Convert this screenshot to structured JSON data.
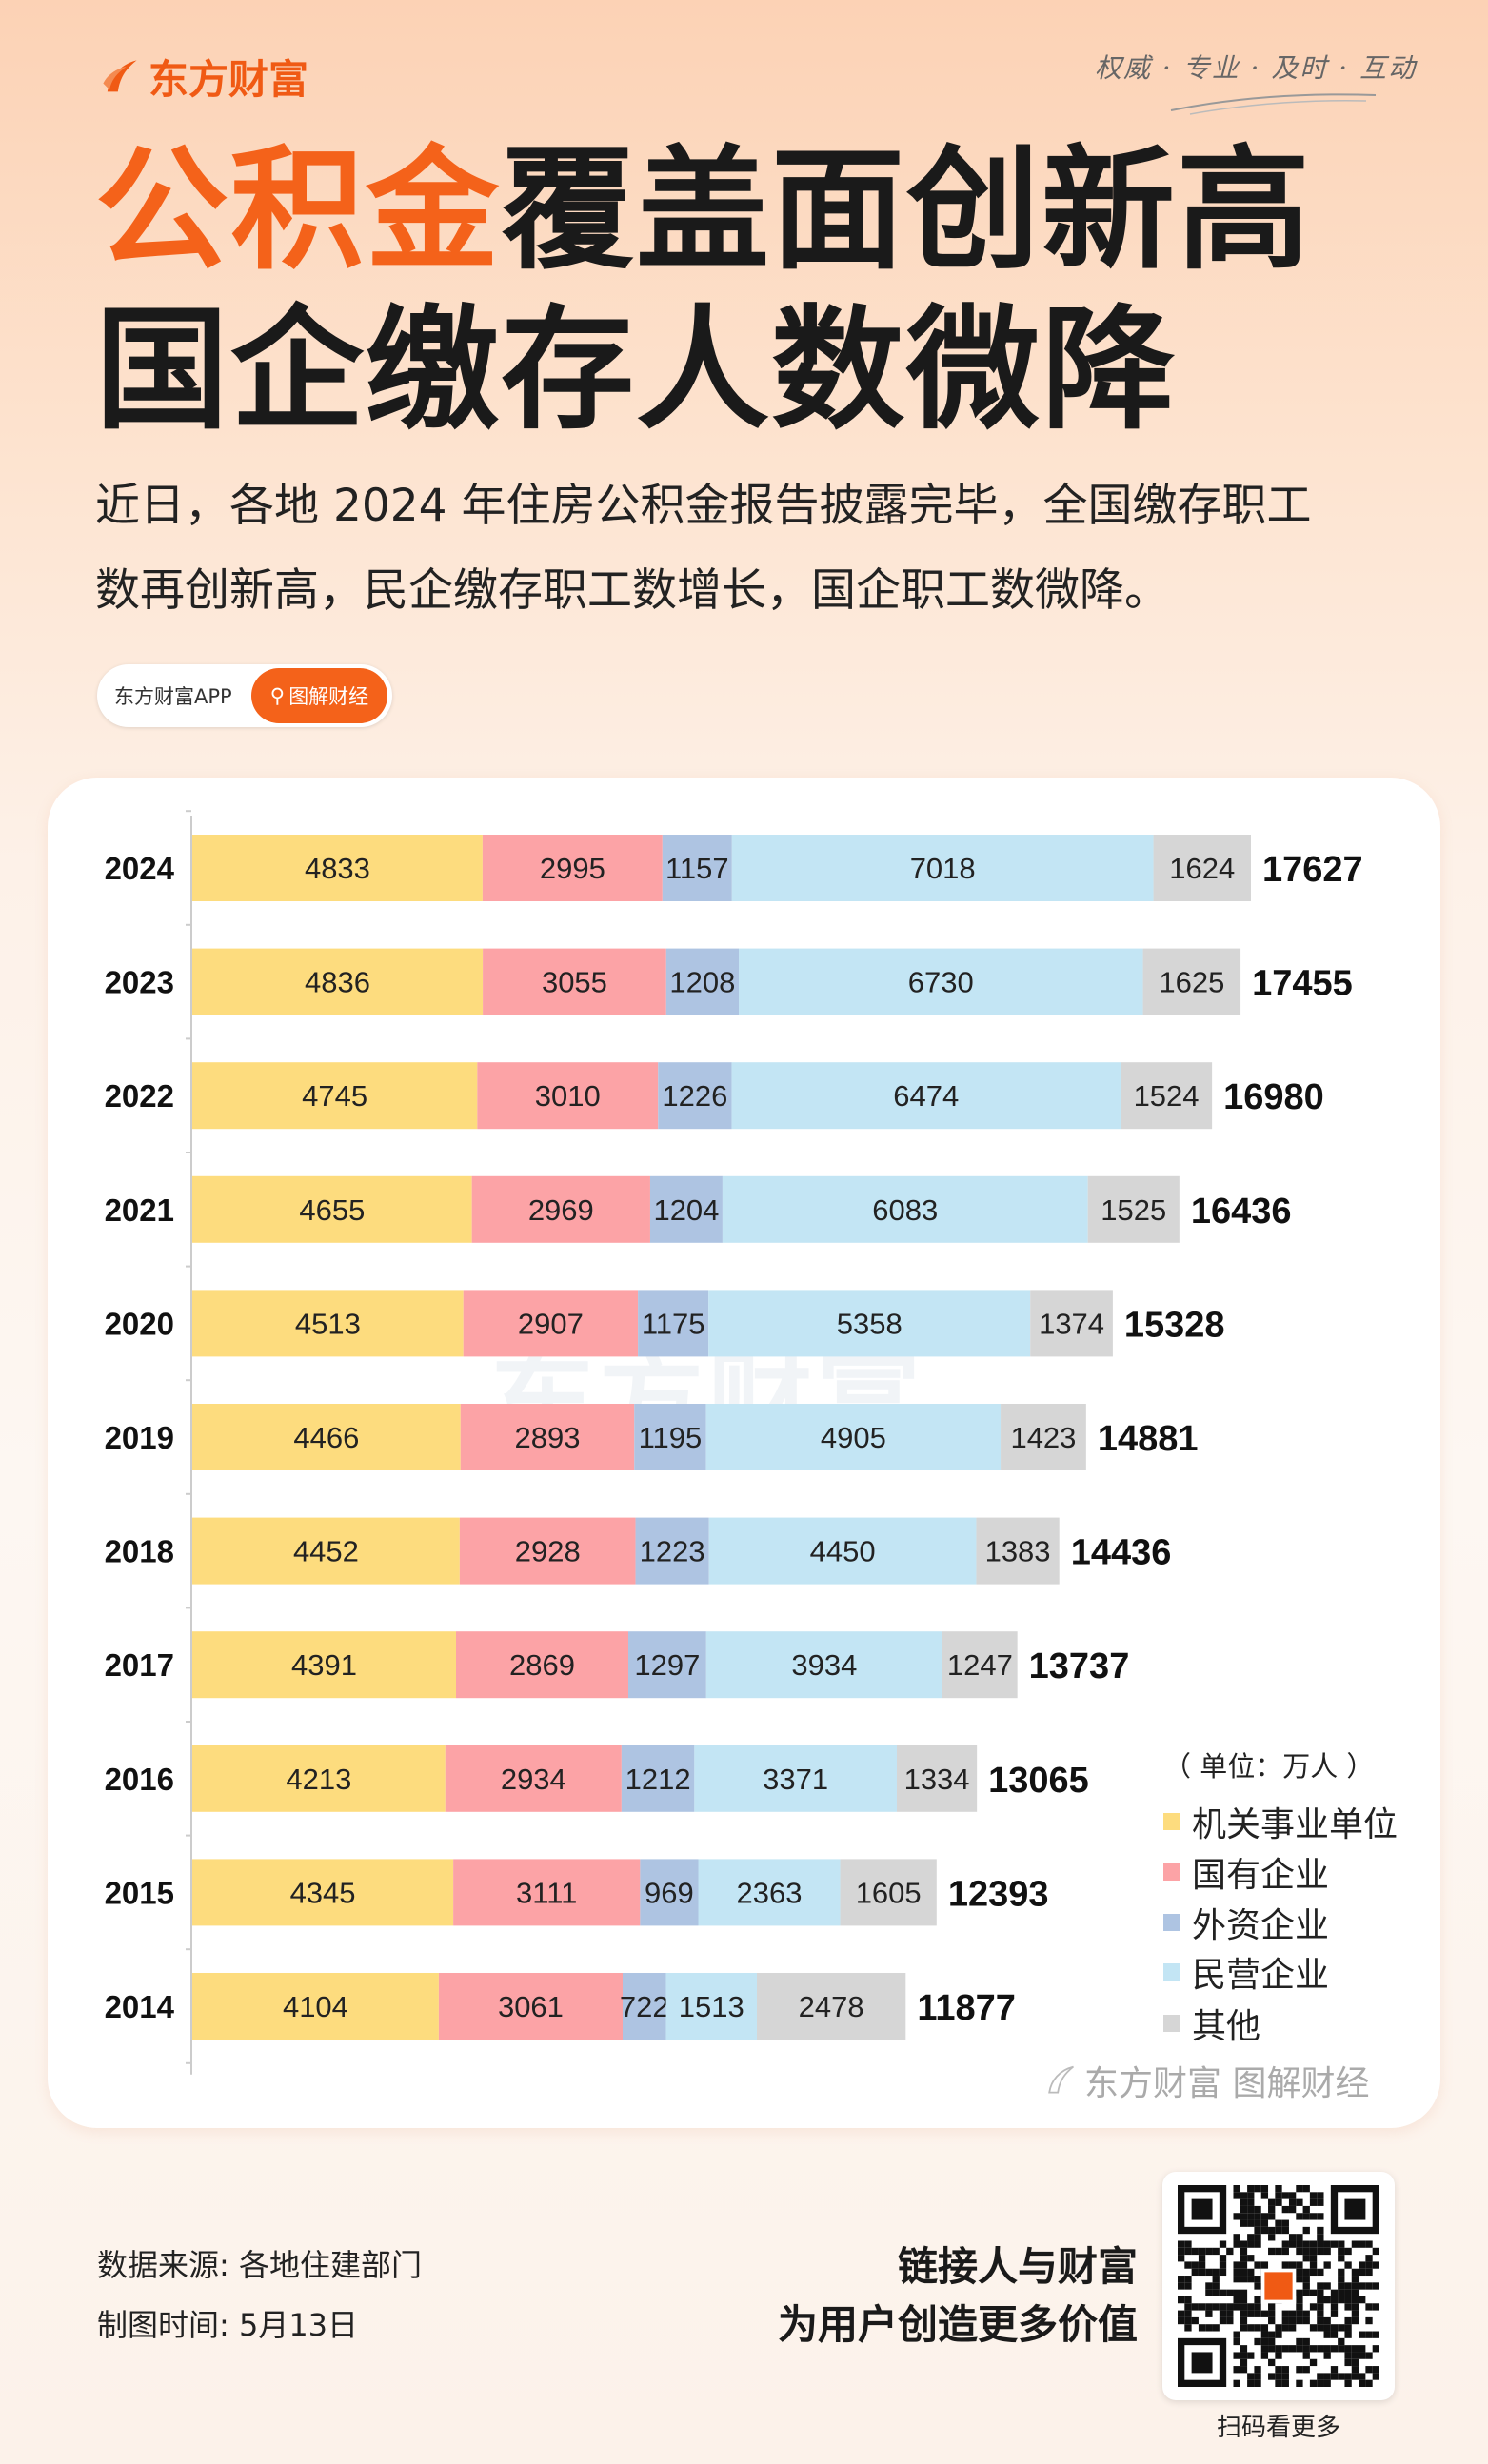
{
  "header": {
    "brand": "东方财富",
    "slogan": "权威 · 专业 · 及时 · 互动",
    "brand_color": "#f05a14"
  },
  "title": {
    "highlight": "公积金",
    "line1_rest": "覆盖面创新高",
    "line2": "国企缴存人数微降"
  },
  "subtitle": {
    "line1": "近日，各地 2024 年住房公积金报告披露完毕，全国缴存职工",
    "line2": "数再创新高，民企缴存职工数增长，国企职工数微降。"
  },
  "badge": {
    "app": "东方财富APP",
    "channel": "图解财经",
    "icon": "search-icon"
  },
  "chart_data": {
    "type": "stacked-bar-horizontal",
    "unit": "（ 单位：万人 ）",
    "categories": [
      "2024",
      "2023",
      "2022",
      "2021",
      "2020",
      "2019",
      "2018",
      "2017",
      "2016",
      "2015",
      "2014"
    ],
    "series": [
      {
        "name": "机关事业单位",
        "color": "#fddc7e",
        "values": [
          4833,
          4836,
          4745,
          4655,
          4513,
          4466,
          4452,
          4391,
          4213,
          4345,
          4104
        ]
      },
      {
        "name": "国有企业",
        "color": "#fca3a6",
        "values": [
          2995,
          3055,
          3010,
          2969,
          2907,
          2893,
          2928,
          2869,
          2934,
          3111,
          3061
        ]
      },
      {
        "name": "外资企业",
        "color": "#aec4e2",
        "values": [
          1157,
          1208,
          1226,
          1204,
          1175,
          1195,
          1223,
          1297,
          1212,
          969,
          722
        ]
      },
      {
        "name": "民营企业",
        "color": "#c3e5f4",
        "values": [
          7018,
          6730,
          6474,
          6083,
          5358,
          4905,
          4450,
          3934,
          3371,
          2363,
          1513
        ]
      },
      {
        "name": "其他",
        "color": "#d6d6d6",
        "values": [
          1624,
          1625,
          1524,
          1525,
          1374,
          1423,
          1383,
          1247,
          1334,
          1605,
          2478
        ]
      }
    ],
    "totals": [
      17627,
      17455,
      16980,
      16436,
      15328,
      14881,
      14436,
      13737,
      13065,
      12393,
      11877
    ],
    "legend_position": "bottom-right"
  },
  "watermark": {
    "center": "东方财富",
    "corner": "东方财富 图解财经"
  },
  "footer": {
    "source": "数据来源: 各地住建部门",
    "date": "制图时间: 5月13日",
    "tag1": "链接人与财富",
    "tag2": "为用户创造更多价值",
    "qr_caption": "扫码看更多"
  }
}
